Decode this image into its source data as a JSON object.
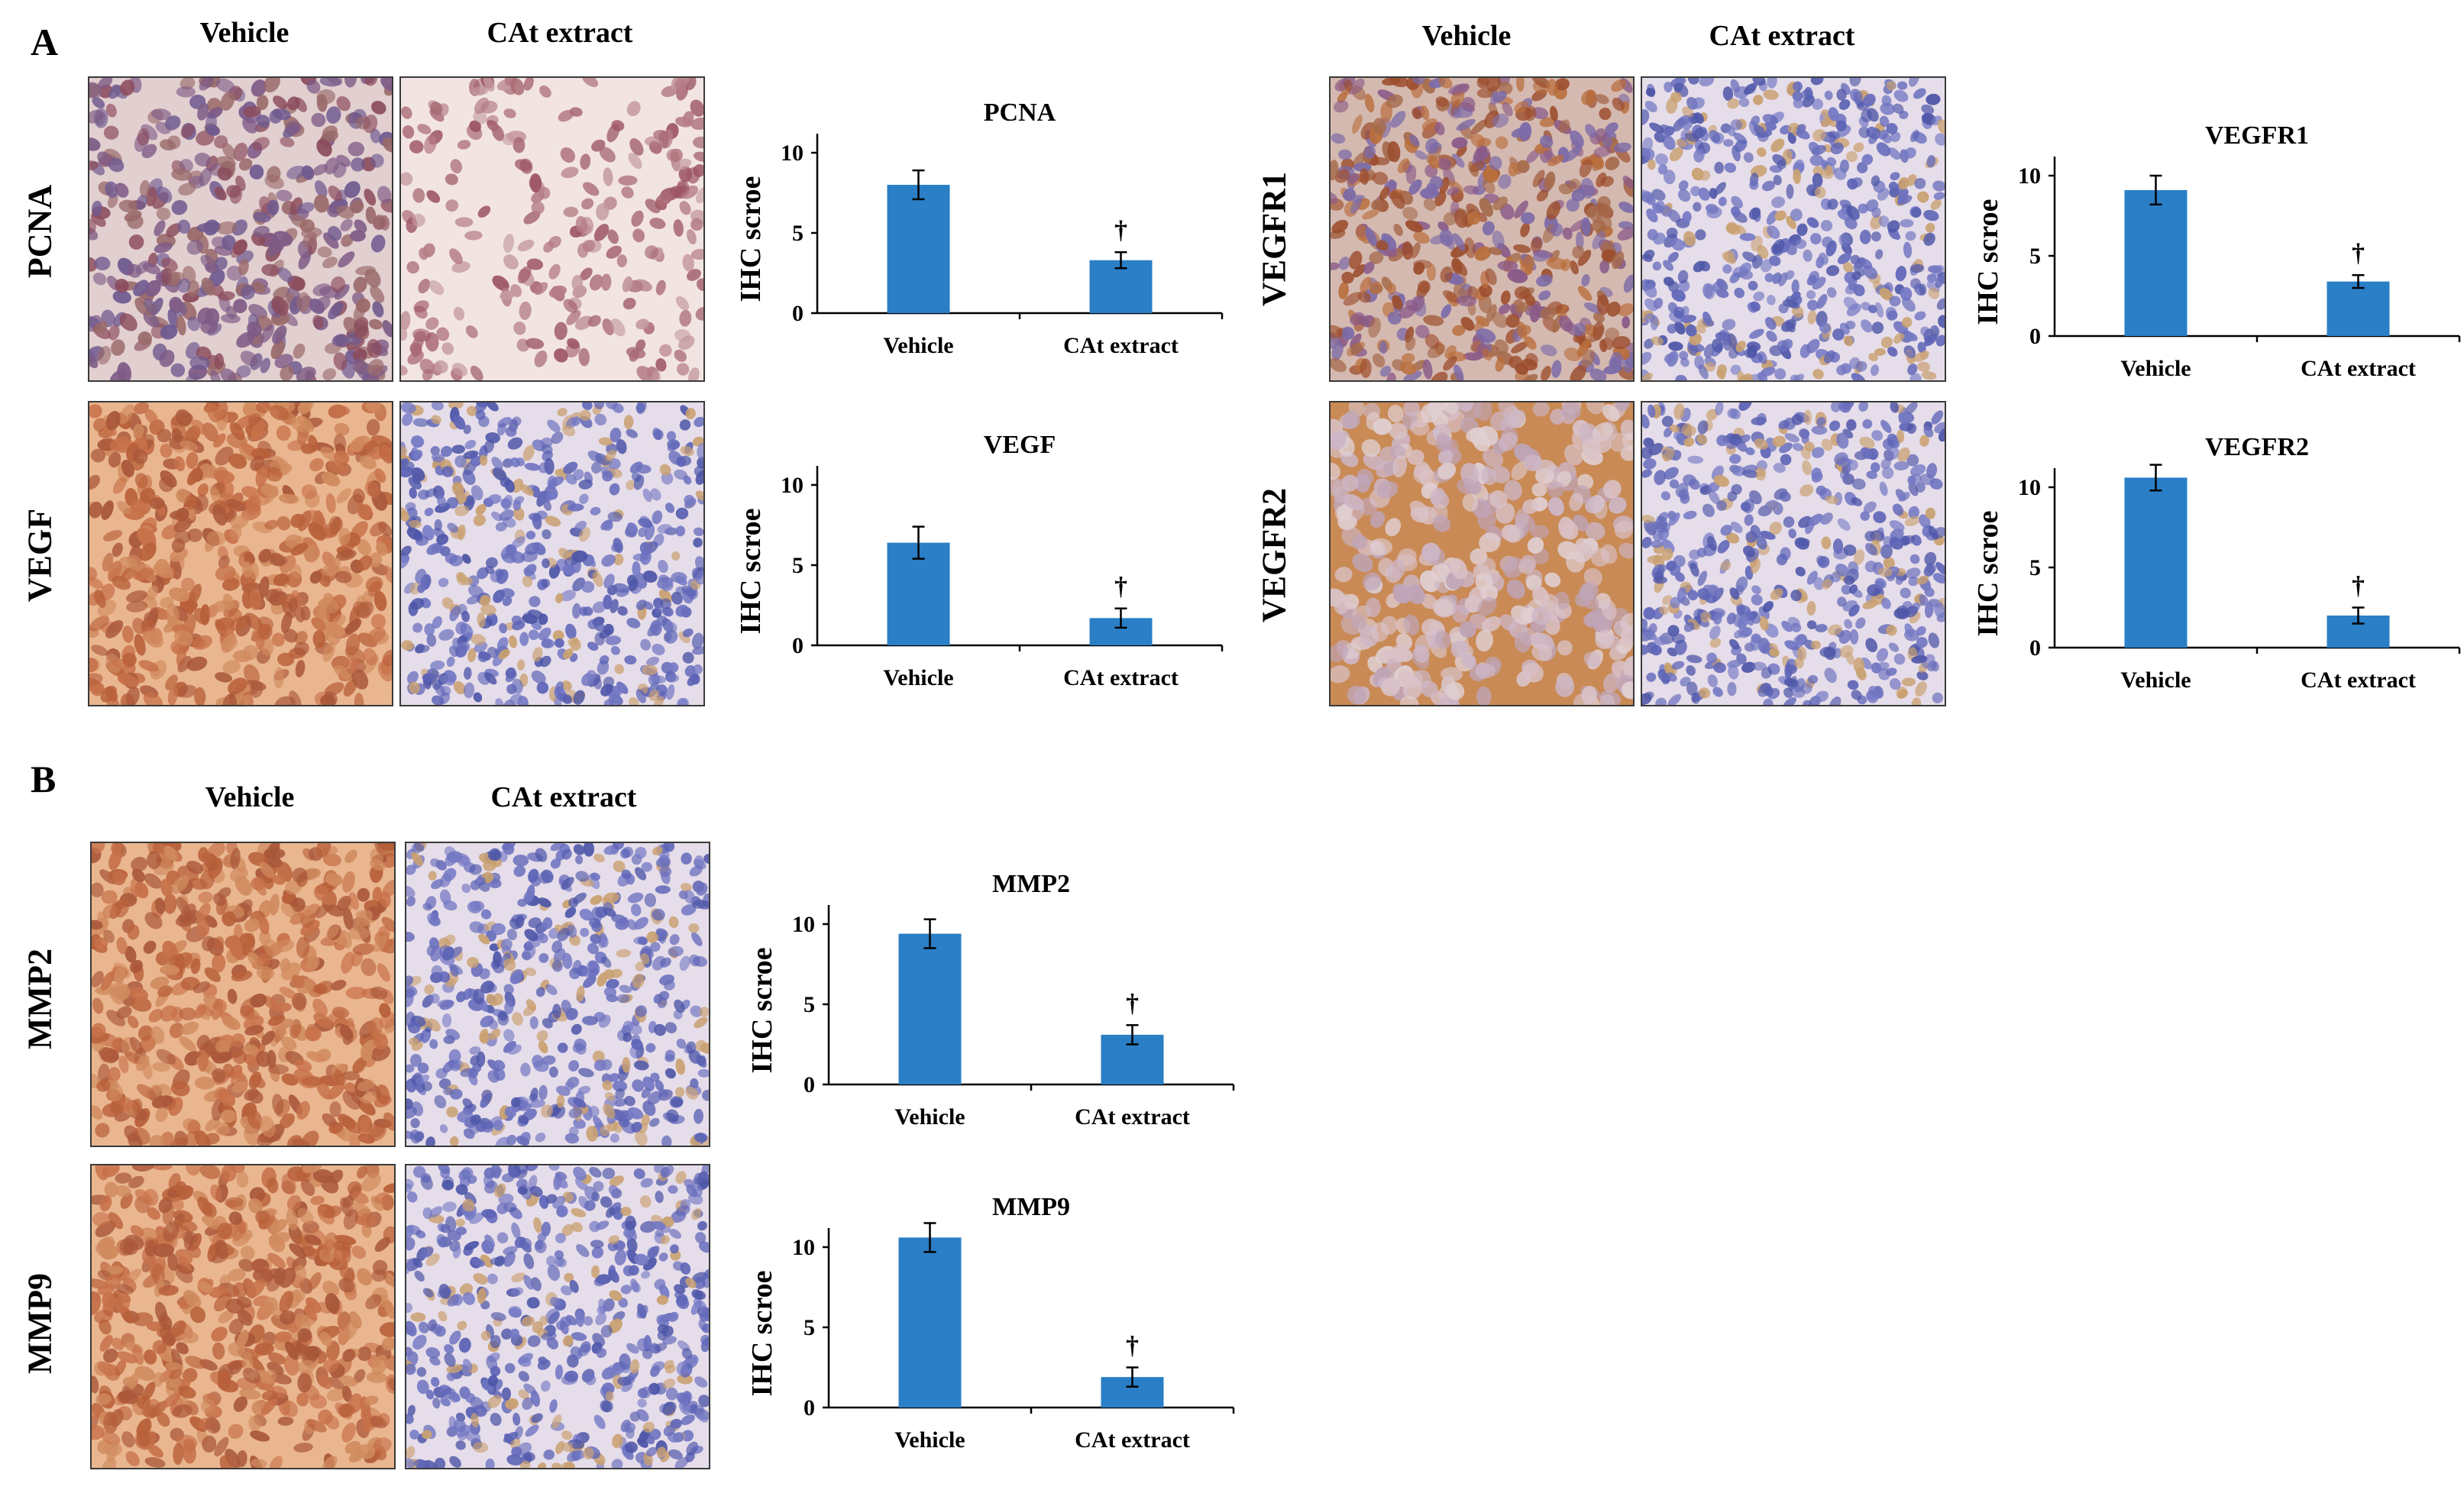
{
  "panels": [
    {
      "letter": "A"
    },
    {
      "letter": "B"
    }
  ],
  "column_headers": {
    "vehicle": "Vehicle",
    "treated": "CAt extract"
  },
  "markers": [
    {
      "id": "pcna",
      "label": "PCNA",
      "vehicle_stain": "brown nuclei on pale background",
      "treated_stain": "sparse brown nuclei on pale background"
    },
    {
      "id": "vegf",
      "label": "VEGF",
      "vehicle_stain": "diffuse brown",
      "treated_stain": "hematoxylin blue"
    },
    {
      "id": "vegfr1",
      "label": "VEGFR1",
      "vehicle_stain": "brown and blue mixed",
      "treated_stain": "hematoxylin blue"
    },
    {
      "id": "vegfr2",
      "label": "VEGFR2",
      "vehicle_stain": "brown membranous",
      "treated_stain": "hematoxylin blue"
    },
    {
      "id": "mmp2",
      "label": "MMP2",
      "vehicle_stain": "diffuse brown",
      "treated_stain": "hematoxylin blue"
    },
    {
      "id": "mmp9",
      "label": "MMP9",
      "vehicle_stain": "diffuse brown",
      "treated_stain": "hematoxylin blue"
    }
  ],
  "chart_data": [
    {
      "type": "bar",
      "title": "PCNA",
      "categories": [
        "Vehicle",
        "CAt extract"
      ],
      "values": [
        8.0,
        3.3
      ],
      "errors": [
        0.9,
        0.5
      ],
      "annotations": [
        "",
        "†"
      ],
      "ylabel": "IHC scroe",
      "ylim": [
        0,
        10
      ],
      "yticks": [
        0,
        5,
        10
      ],
      "color": "#2a7fc6"
    },
    {
      "type": "bar",
      "title": "VEGF",
      "categories": [
        "Vehicle",
        "CAt extract"
      ],
      "values": [
        6.4,
        1.7
      ],
      "errors": [
        1.0,
        0.6
      ],
      "annotations": [
        "",
        "†"
      ],
      "ylabel": "IHC scroe",
      "ylim": [
        0,
        10
      ],
      "yticks": [
        0,
        5,
        10
      ],
      "color": "#2a7fc6"
    },
    {
      "type": "bar",
      "title": "VEGFR1",
      "categories": [
        "Vehicle",
        "CAt extract"
      ],
      "values": [
        9.1,
        3.4
      ],
      "errors": [
        0.9,
        0.4
      ],
      "annotations": [
        "",
        "†"
      ],
      "ylabel": "IHC scroe",
      "ylim": [
        0,
        10
      ],
      "yticks": [
        0,
        5,
        10
      ],
      "color": "#2a7fc6"
    },
    {
      "type": "bar",
      "title": "VEGFR2",
      "categories": [
        "Vehicle",
        "CAt extract"
      ],
      "values": [
        10.6,
        2.0
      ],
      "errors": [
        0.8,
        0.5
      ],
      "annotations": [
        "",
        "†"
      ],
      "ylabel": "IHC scroe",
      "ylim": [
        0,
        10
      ],
      "yticks": [
        0,
        5,
        10
      ],
      "color": "#2a7fc6"
    },
    {
      "type": "bar",
      "title": "MMP2",
      "categories": [
        "Vehicle",
        "CAt extract"
      ],
      "values": [
        9.4,
        3.1
      ],
      "errors": [
        0.9,
        0.6
      ],
      "annotations": [
        "",
        "†"
      ],
      "ylabel": "IHC scroe",
      "ylim": [
        0,
        10
      ],
      "yticks": [
        0,
        5,
        10
      ],
      "color": "#2a7fc6"
    },
    {
      "type": "bar",
      "title": "MMP9",
      "categories": [
        "Vehicle",
        "CAt extract"
      ],
      "values": [
        10.6,
        1.9
      ],
      "errors": [
        0.9,
        0.6
      ],
      "annotations": [
        "",
        "†"
      ],
      "ylabel": "IHC scroe",
      "ylim": [
        0,
        10
      ],
      "yticks": [
        0,
        5,
        10
      ],
      "color": "#2a7fc6"
    }
  ]
}
